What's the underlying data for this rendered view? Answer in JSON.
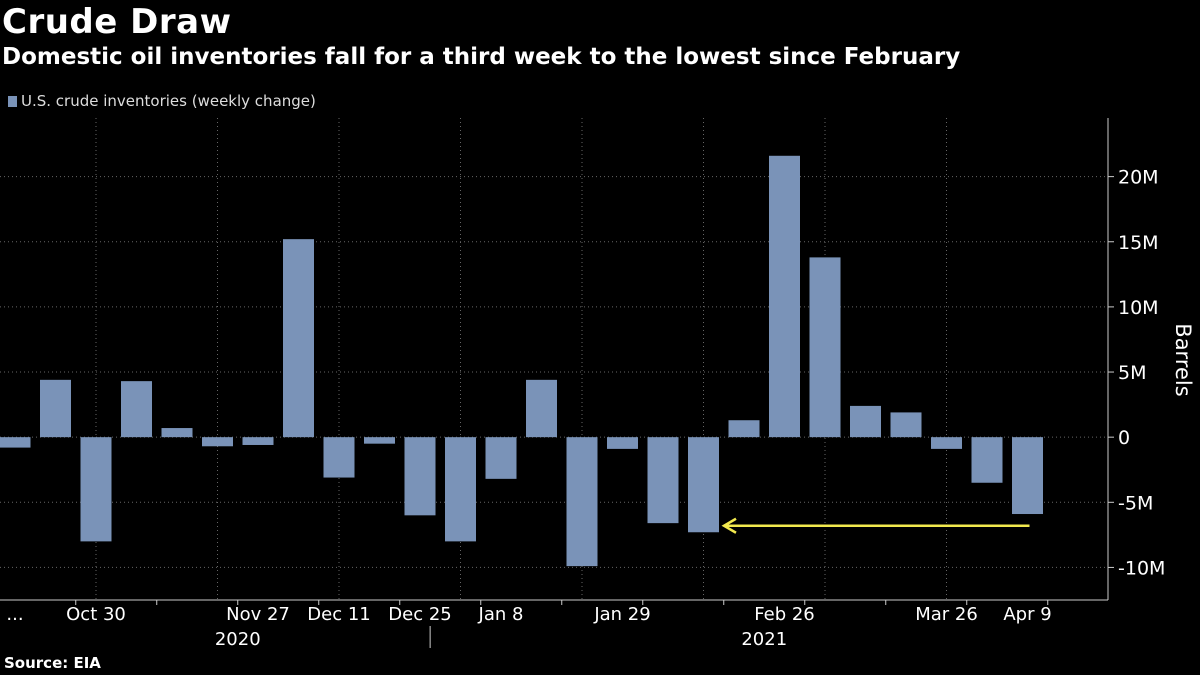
{
  "chart_data": {
    "type": "bar",
    "title": "Crude Draw",
    "subtitle": "Domestic oil inventories fall for a third week to the lowest since February",
    "series": [
      {
        "name": "U.S. crude inventories (weekly change)",
        "values": [
          -0.8,
          4.4,
          -8.0,
          4.3,
          0.7,
          -0.7,
          -0.6,
          15.2,
          -3.1,
          -0.5,
          -6.0,
          -8.0,
          -3.2,
          4.4,
          -9.9,
          -0.9,
          -6.6,
          -7.3,
          1.3,
          21.6,
          13.8,
          2.4,
          1.9,
          -0.9,
          -3.5,
          -5.9
        ]
      }
    ],
    "xlabel": "",
    "ylabel": "Barrels",
    "ylim": [
      -12.5,
      24.5
    ],
    "yticks": [
      {
        "value": 20,
        "label": "20M"
      },
      {
        "value": 15,
        "label": "15M"
      },
      {
        "value": 10,
        "label": "10M"
      },
      {
        "value": 5,
        "label": "5M"
      },
      {
        "value": 0,
        "label": "0"
      },
      {
        "value": -5,
        "label": "-5M"
      },
      {
        "value": -10,
        "label": "-10M"
      }
    ],
    "xticks": [
      {
        "index": 0,
        "label": "..."
      },
      {
        "index": 2,
        "label": "Oct 30"
      },
      {
        "index": 6,
        "label": "Nov 27"
      },
      {
        "index": 8,
        "label": "Dec 11"
      },
      {
        "index": 10,
        "label": "Dec 25"
      },
      {
        "index": 12,
        "label": "Jan 8"
      },
      {
        "index": 15,
        "label": "Jan 29"
      },
      {
        "index": 19,
        "label": "Feb 26"
      },
      {
        "index": 23,
        "label": "Mar 26"
      },
      {
        "index": 25,
        "label": "Apr 9"
      }
    ],
    "years": [
      {
        "index": 5.5,
        "label": "2020"
      },
      {
        "index": 18.5,
        "label": "2021"
      }
    ],
    "annotation": {
      "type": "arrow",
      "from_index": 25,
      "to_index": 18,
      "value": -6.8,
      "color": "#f2e94e"
    },
    "grid": true,
    "legend_position": "top-left",
    "colors": {
      "bar": "#7a93b8",
      "grid": "#666666",
      "axis": "#cccccc"
    }
  },
  "source": "Source: EIA"
}
